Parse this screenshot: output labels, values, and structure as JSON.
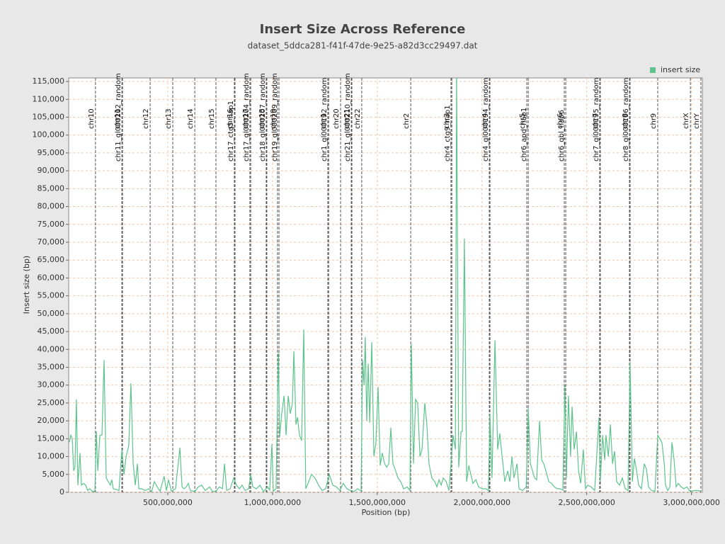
{
  "chart_data": {
    "type": "line",
    "title": "Insert Size Across Reference",
    "subtitle": "dataset_5ddca281-f41f-47de-9e25-a82d3cc29497.dat",
    "x_label": "Position (bp)",
    "y_label": "Insert size (bp)",
    "legend": "top-right",
    "grid": true,
    "xlim": [
      27000000,
      3052000000
    ],
    "ylim": [
      0,
      116000
    ],
    "xticks": [
      {
        "value": 500000000,
        "label": "500,000,000"
      },
      {
        "value": 1000000000,
        "label": "1,000,000,000"
      },
      {
        "value": 1500000000,
        "label": "1,500,000,000"
      },
      {
        "value": 2000000000,
        "label": "2,000,000,000"
      },
      {
        "value": 2500000000,
        "label": "2,500,000,000"
      },
      {
        "value": 3000000000,
        "label": "3,000,000,000"
      }
    ],
    "yticks": [
      0,
      {
        "value": 5000,
        "label": "5,000"
      },
      {
        "value": 10000,
        "label": "10,000"
      },
      {
        "value": 15000,
        "label": "15,000"
      },
      {
        "value": 20000,
        "label": "20,000"
      },
      {
        "value": 25000,
        "label": "25,000"
      },
      {
        "value": 30000,
        "label": "30,000"
      },
      {
        "value": 35000,
        "label": "35,000"
      },
      {
        "value": 40000,
        "label": "40,000"
      },
      {
        "value": 45000,
        "label": "45,000"
      },
      {
        "value": 50000,
        "label": "50,000"
      },
      {
        "value": 55000,
        "label": "55,000"
      },
      {
        "value": 60000,
        "label": "60,000"
      },
      {
        "value": 65000,
        "label": "65,000"
      },
      {
        "value": 70000,
        "label": "70,000"
      },
      {
        "value": 75000,
        "label": "75,000"
      },
      {
        "value": 80000,
        "label": "80,000"
      },
      {
        "value": 85000,
        "label": "85,000"
      },
      {
        "value": 90000,
        "label": "90,000"
      },
      {
        "value": 95000,
        "label": "95,000"
      },
      {
        "value": 100000,
        "label": "100,000"
      },
      {
        "value": 105000,
        "label": "105,000"
      },
      {
        "value": 110000,
        "label": "110,000"
      },
      {
        "value": 115000,
        "label": "115,000"
      }
    ],
    "markers": [
      {
        "label": "chr10",
        "x": 155000000
      },
      {
        "label": "chr11",
        "x": 281000000
      },
      {
        "label": "chr11_gl000202_random",
        "x": 284000000
      },
      {
        "label": "chr12",
        "x": 416000000
      },
      {
        "label": "chr13",
        "x": 524000000
      },
      {
        "label": "chr14",
        "x": 629000000
      },
      {
        "label": "chr15",
        "x": 730000000
      },
      {
        "label": "chr16",
        "x": 818000000
      },
      {
        "label": "chr17_ctg5_hap1",
        "x": 821000000
      },
      {
        "label": "chr17",
        "x": 892000000
      },
      {
        "label": "chr17_gl000204_random",
        "x": 896000000
      },
      {
        "label": "chr18",
        "x": 970000000
      },
      {
        "label": "chr18_gl000207_random",
        "x": 973000000
      },
      {
        "label": "chr19",
        "x": 1024000000
      },
      {
        "label": "chr19_gl000209_random",
        "x": 1031000000
      },
      {
        "label": "chr1",
        "x": 1264000000
      },
      {
        "label": "chr1_gl000192_random",
        "x": 1268000000
      },
      {
        "label": "chr20",
        "x": 1325000000
      },
      {
        "label": "chr21",
        "x": 1376000000
      },
      {
        "label": "chr21_gl000210_random",
        "x": 1379000000
      },
      {
        "label": "chr22",
        "x": 1426000000
      },
      {
        "label": "chr2",
        "x": 1660000000
      },
      {
        "label": "chr3",
        "x": 1852000000
      },
      {
        "label": "chr4_ctg9_hap1",
        "x": 1856000000
      },
      {
        "label": "chr4",
        "x": 2035000000
      },
      {
        "label": "chr4_gl000194_random",
        "x": 2038000000
      },
      {
        "label": "chr5",
        "x": 2214000000
      },
      {
        "label": "chr6_apd_hap1",
        "x": 2221000000
      },
      {
        "label": "chr6",
        "x": 2393000000
      },
      {
        "label": "chr6_qbl_hap6",
        "x": 2400000000
      },
      {
        "label": "chr7",
        "x": 2562000000
      },
      {
        "label": "chr7_gl000195_random",
        "x": 2565000000
      },
      {
        "label": "chr8",
        "x": 2704000000
      },
      {
        "label": "chr8_gl000196_random",
        "x": 2707000000
      },
      {
        "label": "chr9",
        "x": 2839000000
      },
      {
        "label": "chrX",
        "x": 2995000000
      },
      {
        "label": "chrY",
        "x": 3045000000
      }
    ],
    "x": [
      30000000,
      37000000,
      44000000,
      51000000,
      57000000,
      64000000,
      71000000,
      81000000,
      88000000,
      98000000,
      108000000,
      118000000,
      128000000,
      139000000,
      152000000,
      159000000,
      166000000,
      176000000,
      186000000,
      196000000,
      206000000,
      216000000,
      226000000,
      233000000,
      240000000,
      254000000,
      267000000,
      281000000,
      291000000,
      301000000,
      314000000,
      324000000,
      335000000,
      345000000,
      355000000,
      362000000,
      375000000,
      392000000,
      409000000,
      423000000,
      436000000,
      450000000,
      463000000,
      483000000,
      493000000,
      504000000,
      517000000,
      537000000,
      558000000,
      568000000,
      578000000,
      588000000,
      598000000,
      608000000,
      629000000,
      646000000,
      662000000,
      679000000,
      700000000,
      713000000,
      730000000,
      747000000,
      761000000,
      771000000,
      781000000,
      798000000,
      815000000,
      828000000,
      842000000,
      855000000,
      869000000,
      886000000,
      896000000,
      906000000,
      923000000,
      940000000,
      957000000,
      977000000,
      987000000,
      997000000,
      1004000000,
      1017000000,
      1028000000,
      1034000000,
      1044000000,
      1055000000,
      1065000000,
      1075000000,
      1085000000,
      1095000000,
      1102000000,
      1112000000,
      1119000000,
      1129000000,
      1139000000,
      1149000000,
      1159000000,
      1173000000,
      1186000000,
      1203000000,
      1220000000,
      1237000000,
      1254000000,
      1271000000,
      1288000000,
      1305000000,
      1322000000,
      1338000000,
      1355000000,
      1372000000,
      1389000000,
      1406000000,
      1423000000,
      1430000000,
      1437000000,
      1443000000,
      1450000000,
      1457000000,
      1464000000,
      1474000000,
      1484000000,
      1494000000,
      1504000000,
      1514000000,
      1524000000,
      1535000000,
      1545000000,
      1555000000,
      1565000000,
      1575000000,
      1585000000,
      1599000000,
      1612000000,
      1626000000,
      1643000000,
      1656000000,
      1663000000,
      1673000000,
      1683000000,
      1693000000,
      1704000000,
      1714000000,
      1727000000,
      1737000000,
      1747000000,
      1761000000,
      1775000000,
      1785000000,
      1795000000,
      1805000000,
      1815000000,
      1829000000,
      1842000000,
      1852000000,
      1862000000,
      1873000000,
      1879000000,
      1889000000,
      1900000000,
      1906000000,
      1916000000,
      1927000000,
      1937000000,
      1947000000,
      1957000000,
      1971000000,
      1984000000,
      2001000000,
      2018000000,
      2031000000,
      2038000000,
      2048000000,
      2062000000,
      2075000000,
      2085000000,
      2096000000,
      2109000000,
      2123000000,
      2133000000,
      2143000000,
      2153000000,
      2167000000,
      2177000000,
      2194000000,
      2211000000,
      2221000000,
      2231000000,
      2241000000,
      2251000000,
      2261000000,
      2275000000,
      2285000000,
      2295000000,
      2305000000,
      2319000000,
      2332000000,
      2346000000,
      2359000000,
      2373000000,
      2386000000,
      2396000000,
      2403000000,
      2413000000,
      2423000000,
      2430000000,
      2440000000,
      2451000000,
      2461000000,
      2471000000,
      2484000000,
      2494000000,
      2505000000,
      2521000000,
      2538000000,
      2559000000,
      2565000000,
      2576000000,
      2586000000,
      2592000000,
      2603000000,
      2613000000,
      2623000000,
      2633000000,
      2643000000,
      2657000000,
      2670000000,
      2684000000,
      2697000000,
      2707000000,
      2718000000,
      2728000000,
      2738000000,
      2748000000,
      2761000000,
      2775000000,
      2785000000,
      2795000000,
      2809000000,
      2826000000,
      2839000000,
      2849000000,
      2859000000,
      2870000000,
      2876000000,
      2887000000,
      2897000000,
      2907000000,
      2917000000,
      2927000000,
      2937000000,
      2951000000,
      2964000000,
      2978000000,
      2995000000,
      3012000000,
      3028000000,
      3045000000
    ],
    "series": [
      {
        "name": "insert size",
        "color": "#5cc48c",
        "values": [
          14000,
          16000,
          15000,
          6000,
          7000,
          26000,
          2000,
          11000,
          2000,
          2500,
          2000,
          500,
          1000,
          300,
          200,
          17000,
          6000,
          16000,
          16000,
          37000,
          4000,
          3000,
          2000,
          3500,
          1000,
          800,
          500,
          12000,
          5000,
          10000,
          13000,
          30500,
          8000,
          2000,
          8000,
          1000,
          1000,
          500,
          1000,
          200,
          3000,
          1500,
          300,
          4500,
          500,
          3500,
          300,
          1000,
          12500,
          1500,
          1000,
          1500,
          2500,
          500,
          200,
          1500,
          2000,
          500,
          1500,
          200,
          300,
          1500,
          1000,
          8000,
          500,
          1000,
          4000,
          2000,
          1000,
          2000,
          500,
          1000,
          5000,
          1500,
          1000,
          2000,
          200,
          1500,
          600,
          13500,
          300,
          1000,
          39000,
          15500,
          22000,
          27000,
          16000,
          27000,
          22000,
          25000,
          39500,
          19000,
          21000,
          16000,
          14500,
          45500,
          1000,
          3000,
          5000,
          4000,
          2000,
          500,
          1000,
          5000,
          2000,
          1500,
          500,
          2500,
          1000,
          500,
          200,
          1000,
          400,
          37000,
          30000,
          43500,
          20000,
          36000,
          19500,
          42000,
          10000,
          14000,
          29500,
          7500,
          11000,
          8000,
          7000,
          8000,
          18000,
          8000,
          6500,
          4000,
          3000,
          1000,
          1500,
          500,
          41500,
          8000,
          26000,
          25000,
          10000,
          12000,
          25000,
          19000,
          8000,
          4000,
          3000,
          1500,
          3500,
          2000,
          4000,
          3000,
          500,
          8000,
          16000,
          12000,
          116000,
          7000,
          17000,
          17000,
          71000,
          3000,
          7500,
          5000,
          2500,
          3500,
          1500,
          1000,
          1000,
          500,
          22000,
          4000,
          42500,
          12000,
          16500,
          10000,
          3000,
          6000,
          3000,
          10000,
          4000,
          8000,
          1000,
          500,
          1500,
          23500,
          8000,
          6000,
          4000,
          3500,
          20000,
          9000,
          8000,
          6000,
          3000,
          2500,
          1500,
          1000,
          1000,
          600,
          30000,
          4000,
          27000,
          10000,
          24000,
          12000,
          17000,
          6000,
          2500,
          12000,
          1000,
          2000,
          1500,
          500,
          21000,
          3000,
          16000,
          9000,
          16000,
          10000,
          19000,
          8000,
          11500,
          3000,
          2000,
          4000,
          1000,
          500,
          36500,
          3000,
          9500,
          6000,
          2000,
          1000,
          8000,
          6500,
          1500,
          500,
          300,
          16000,
          15000,
          14000,
          8000,
          2000,
          500,
          1500,
          14000,
          9000,
          1500,
          2500,
          1500,
          1000,
          1500,
          200,
          500,
          500,
          300
        ]
      }
    ]
  }
}
